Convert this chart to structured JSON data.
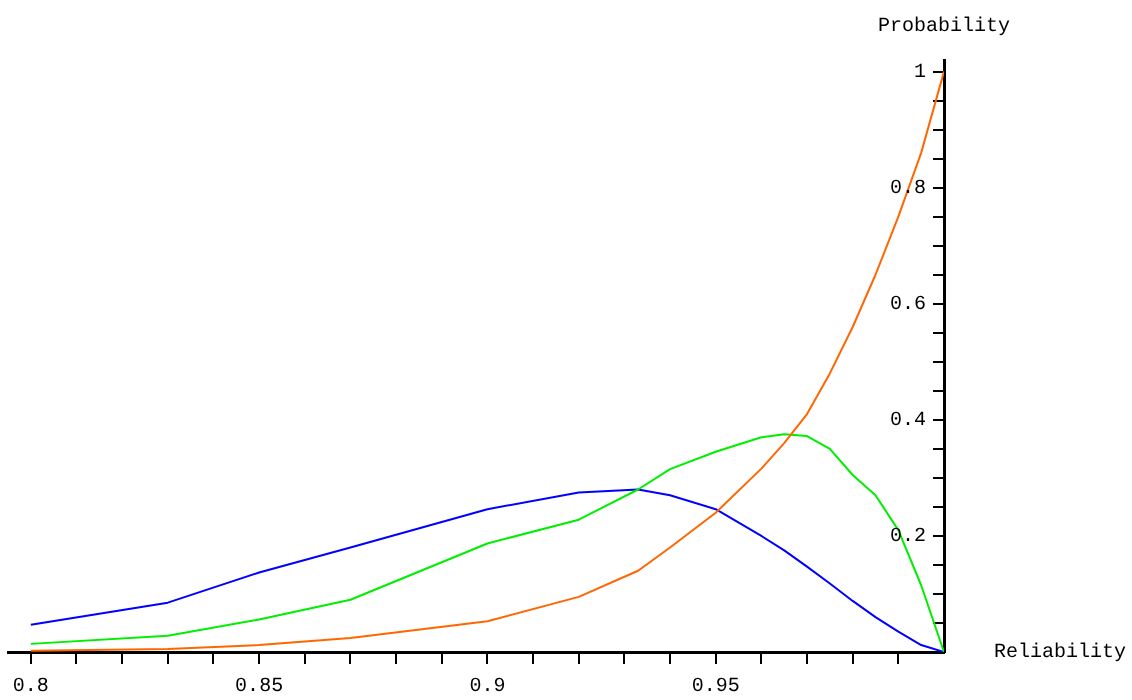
{
  "chart_data": {
    "type": "line",
    "xlabel": "Reliability",
    "ylabel": "Probability",
    "x": [
      0.8,
      0.83,
      0.85,
      0.87,
      0.9,
      0.92,
      0.933,
      0.94,
      0.95,
      0.96,
      0.965,
      0.97,
      0.975,
      0.98,
      0.985,
      0.99,
      0.995,
      1.0
    ],
    "series": [
      {
        "color": "#ff6600",
        "values": [
          0.002,
          0.005,
          0.012,
          0.024,
          0.053,
          0.095,
          0.14,
          0.18,
          0.24,
          0.316,
          0.36,
          0.41,
          0.48,
          0.56,
          0.65,
          0.75,
          0.86,
          1.0
        ]
      },
      {
        "color": "#00ee00",
        "values": [
          0.014,
          0.028,
          0.056,
          0.09,
          0.187,
          0.228,
          0.28,
          0.315,
          0.345,
          0.37,
          0.375,
          0.372,
          0.35,
          0.305,
          0.27,
          0.21,
          0.115,
          0.0
        ]
      },
      {
        "color": "#0000ff",
        "values": [
          0.047,
          0.085,
          0.137,
          0.18,
          0.246,
          0.275,
          0.28,
          0.27,
          0.246,
          0.2,
          0.175,
          0.147,
          0.118,
          0.088,
          0.06,
          0.035,
          0.012,
          0.0
        ]
      }
    ],
    "xlim": [
      0.795,
      1.0
    ],
    "ylim": [
      0,
      1.02
    ],
    "xticks": [
      0.8,
      {
        "value": 0.81,
        "label": null
      },
      {
        "value": 0.82,
        "label": null
      },
      {
        "value": 0.83,
        "label": null
      },
      {
        "value": 0.84,
        "label": null
      },
      0.85,
      {
        "value": 0.86,
        "label": null
      },
      {
        "value": 0.87,
        "label": null
      },
      {
        "value": 0.88,
        "label": null
      },
      {
        "value": 0.89,
        "label": null
      },
      0.9,
      {
        "value": 0.91,
        "label": null
      },
      {
        "value": 0.92,
        "label": null
      },
      {
        "value": 0.93,
        "label": null
      },
      {
        "value": 0.94,
        "label": null
      },
      0.95,
      {
        "value": 0.96,
        "label": null
      },
      {
        "value": 0.97,
        "label": null
      },
      {
        "value": 0.98,
        "label": null
      },
      {
        "value": 0.99,
        "label": null
      }
    ],
    "yticks": [
      {
        "value": 0.05,
        "label": null
      },
      {
        "value": 0.1,
        "label": null
      },
      {
        "value": 0.15,
        "label": null
      },
      0.2,
      {
        "value": 0.25,
        "label": null
      },
      {
        "value": 0.3,
        "label": null
      },
      {
        "value": 0.35,
        "label": null
      },
      0.4,
      {
        "value": 0.45,
        "label": null
      },
      {
        "value": 0.5,
        "label": null
      },
      {
        "value": 0.55,
        "label": null
      },
      0.6,
      {
        "value": 0.65,
        "label": null
      },
      {
        "value": 0.7,
        "label": null
      },
      {
        "value": 0.75,
        "label": null
      },
      0.8,
      {
        "value": 0.85,
        "label": null
      },
      {
        "value": 0.9,
        "label": null
      },
      {
        "value": 0.95,
        "label": null
      },
      1
    ],
    "grid": false,
    "legend": false,
    "marker": "none",
    "line_style": "solid"
  }
}
